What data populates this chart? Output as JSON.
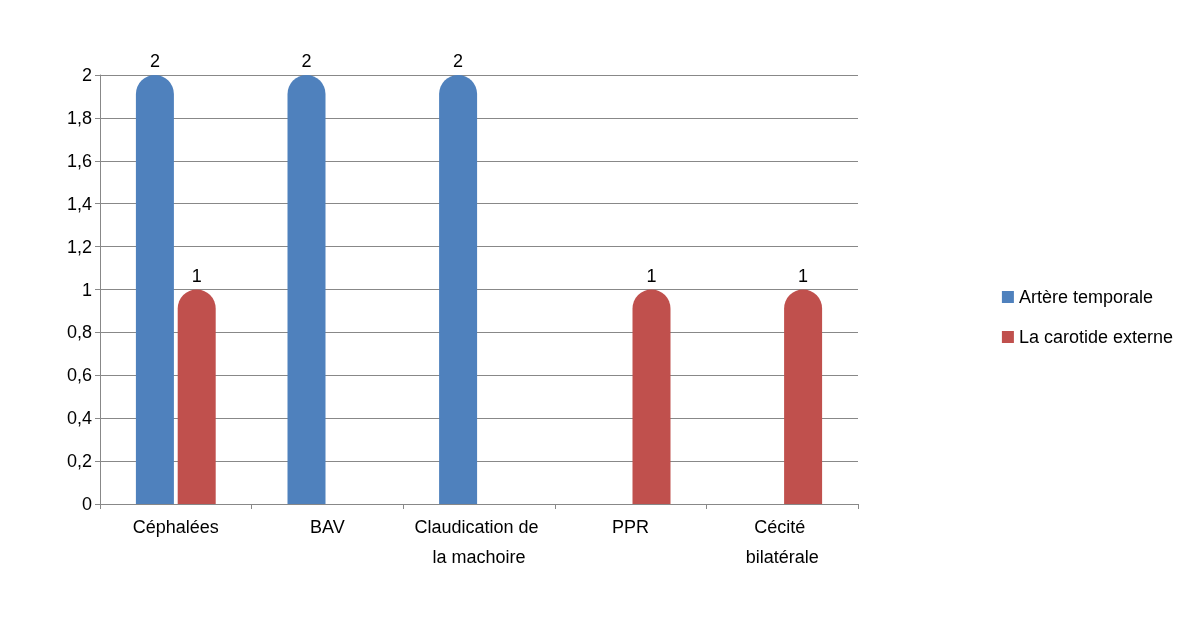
{
  "chart_data": {
    "type": "bar",
    "categories": [
      "Céphalées",
      "BAV",
      "Claudication de la machoire",
      "PPR",
      "Cécité bilatérale"
    ],
    "series": [
      {
        "name": "Artère temporale",
        "color": "#4f81bd",
        "values": [
          2,
          2,
          2,
          null,
          null
        ]
      },
      {
        "name": "La carotide externe",
        "color": "#c0504d",
        "values": [
          1,
          null,
          null,
          1,
          1
        ]
      }
    ],
    "ylim": [
      0,
      2
    ],
    "yticks": [
      0,
      {
        "value": 0.2,
        "label": "0,2"
      },
      {
        "value": 0.4,
        "label": "0,4"
      },
      {
        "value": 0.6,
        "label": "0,6"
      },
      {
        "value": 0.8,
        "label": "0,8"
      },
      1,
      {
        "value": 1.2,
        "label": "1,2"
      },
      {
        "value": 1.4,
        "label": "1,4"
      },
      {
        "value": 1.6,
        "label": "1,6"
      },
      {
        "value": 1.8,
        "label": "1,8"
      },
      2
    ],
    "grid": true,
    "legend": "right",
    "data_labels": true
  }
}
